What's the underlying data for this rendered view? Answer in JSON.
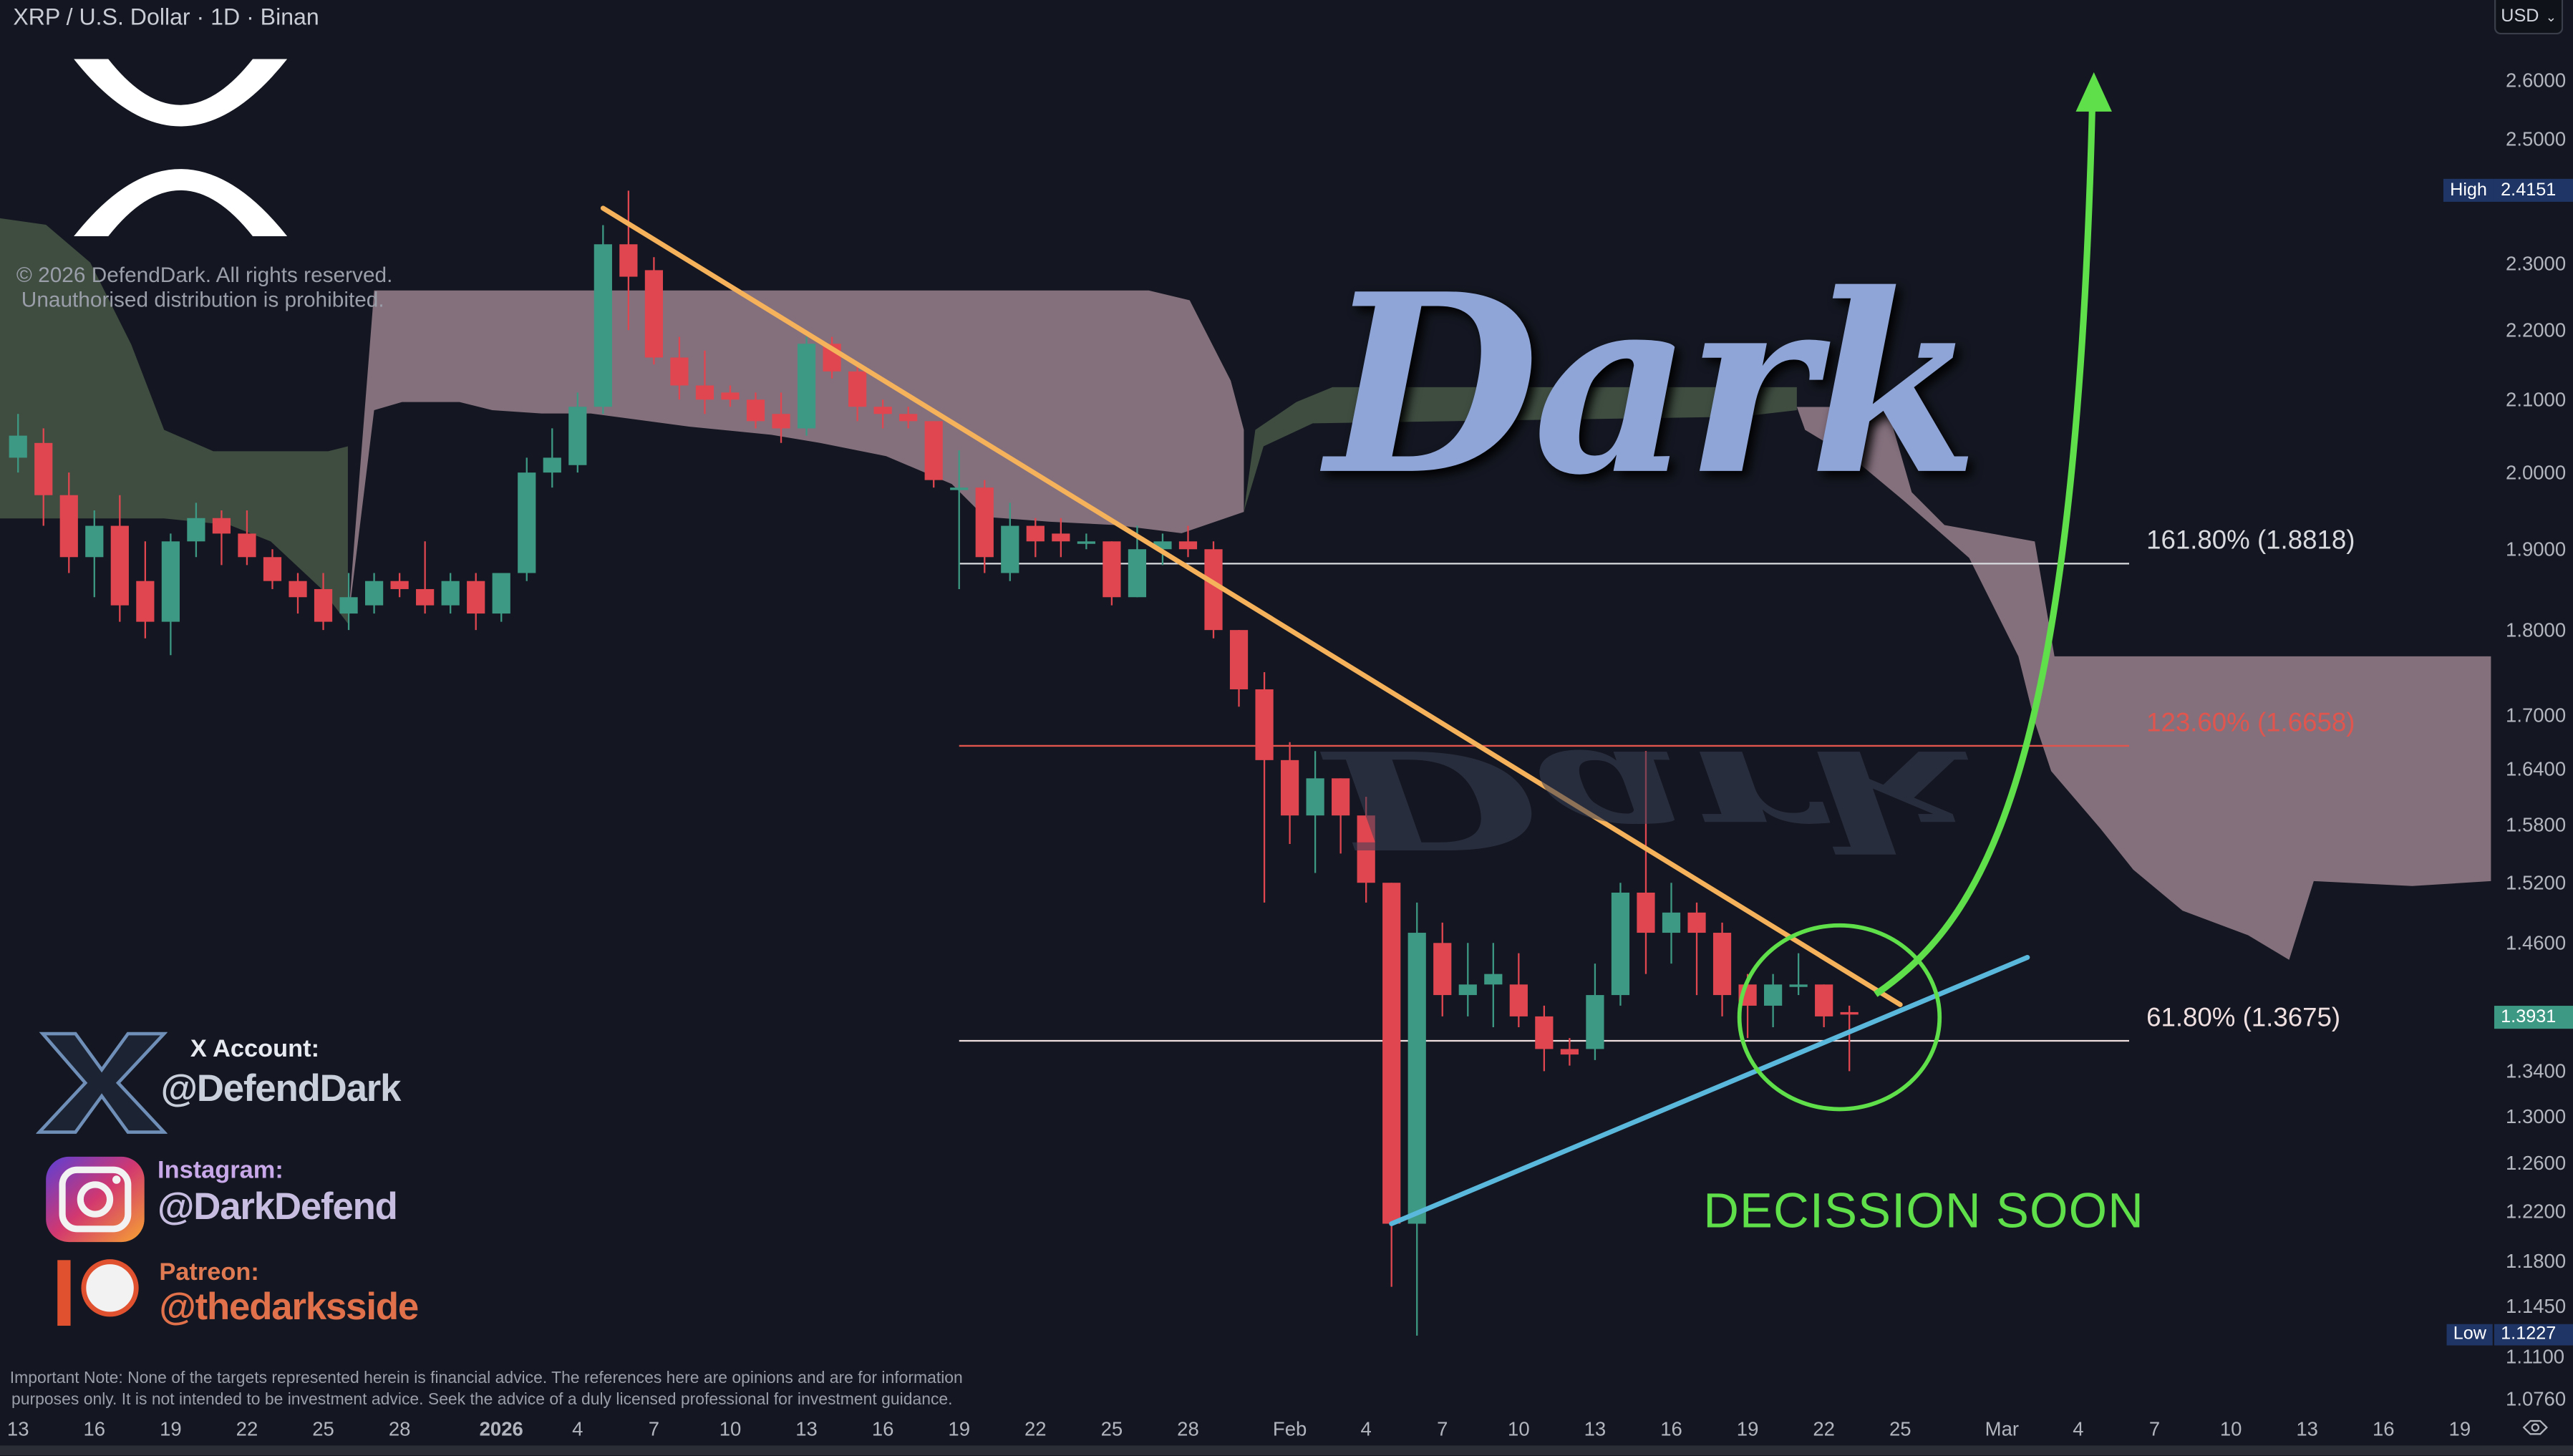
{
  "header": {
    "title": "XRP / U.S. Dollar · 1D · Binan"
  },
  "copyright": {
    "line1": "© 2026 DefendDark. All rights reserved.",
    "line2": "Unauthorised distribution is prohibited."
  },
  "watermark": {
    "text": "Dark"
  },
  "currency_button": {
    "label": "USD"
  },
  "badges": {
    "high": {
      "label": "High",
      "value": "2.4151"
    },
    "low": {
      "label": "Low",
      "value": "1.1227"
    },
    "last": {
      "value": "1.3931"
    }
  },
  "annotation": {
    "text": "DECISSION SOON"
  },
  "social": {
    "x": {
      "title": "X Account:",
      "handle": "@DefendDark"
    },
    "instagram": {
      "title": "Instagram:",
      "handle": "@DarkDefend"
    },
    "patreon": {
      "title": "Patreon:",
      "handle": "@thedarksside"
    }
  },
  "disclaimer": {
    "line1": "Important Note: None of the targets represented herein is financial advice. The references here are opinions and are for information",
    "line2": "purposes only. It is not intended to be investment advice. Seek the advice of a duly licensed professional for investment guidance."
  },
  "colors": {
    "up": "#3d9983",
    "down": "#e0464f",
    "background": "#141721",
    "downtrend": "#f5b25a",
    "uptrend": "#5ab8dc",
    "arrow": "#5fe04a",
    "cloud_bear": "#84707d",
    "cloud_bull": "#3f4d41"
  },
  "chart_data": {
    "type": "candlestick",
    "title": "XRP / U.S. Dollar · 1D · Binan",
    "y_scale": "log",
    "ylim": [
      1.076,
      2.66
    ],
    "xlim": [
      "2025-12-13",
      "2026-03-21"
    ],
    "grid": false,
    "y_ticks": [
      "2.6000",
      "2.5000",
      "2.3000",
      "2.2000",
      "2.1000",
      "2.0000",
      "1.9000",
      "1.8000",
      "1.7000",
      "1.6400",
      "1.5800",
      "1.5200",
      "1.4600",
      "1.3400",
      "1.3000",
      "1.2600",
      "1.2200",
      "1.1800",
      "1.1450",
      "1.1100",
      "1.0760"
    ],
    "x_ticks": [
      {
        "label": "13",
        "date": "2025-12-13"
      },
      {
        "label": "16",
        "date": "2025-12-16"
      },
      {
        "label": "19",
        "date": "2025-12-19"
      },
      {
        "label": "22",
        "date": "2025-12-22"
      },
      {
        "label": "25",
        "date": "2025-12-25"
      },
      {
        "label": "28",
        "date": "2025-12-28"
      },
      {
        "label": "2026",
        "date": "2026-01-01",
        "bold": true
      },
      {
        "label": "4",
        "date": "2026-01-04"
      },
      {
        "label": "7",
        "date": "2026-01-07"
      },
      {
        "label": "10",
        "date": "2026-01-10"
      },
      {
        "label": "13",
        "date": "2026-01-13"
      },
      {
        "label": "16",
        "date": "2026-01-16"
      },
      {
        "label": "19",
        "date": "2026-01-19"
      },
      {
        "label": "22",
        "date": "2026-01-22"
      },
      {
        "label": "25",
        "date": "2026-01-25"
      },
      {
        "label": "28",
        "date": "2026-01-28"
      },
      {
        "label": "Feb",
        "date": "2026-02-01"
      },
      {
        "label": "4",
        "date": "2026-02-04"
      },
      {
        "label": "7",
        "date": "2026-02-07"
      },
      {
        "label": "10",
        "date": "2026-02-10"
      },
      {
        "label": "13",
        "date": "2026-02-13"
      },
      {
        "label": "16",
        "date": "2026-02-16"
      },
      {
        "label": "19",
        "date": "2026-02-19"
      },
      {
        "label": "22",
        "date": "2026-02-22"
      },
      {
        "label": "25",
        "date": "2026-02-25"
      },
      {
        "label": "Mar",
        "date": "2026-03-01"
      },
      {
        "label": "4",
        "date": "2026-03-04"
      },
      {
        "label": "7",
        "date": "2026-03-07"
      },
      {
        "label": "10",
        "date": "2026-03-10"
      },
      {
        "label": "13",
        "date": "2026-03-13"
      },
      {
        "label": "16",
        "date": "2026-03-16"
      },
      {
        "label": "19",
        "date": "2026-03-19"
      }
    ],
    "candles_columns": [
      "date",
      "open",
      "high",
      "low",
      "close"
    ],
    "candles": [
      [
        "2025-12-13",
        2.02,
        2.08,
        2.0,
        2.05
      ],
      [
        "2025-12-14",
        2.04,
        2.06,
        1.93,
        1.97
      ],
      [
        "2025-12-15",
        1.97,
        2.0,
        1.87,
        1.89
      ],
      [
        "2025-12-16",
        1.89,
        1.95,
        1.84,
        1.93
      ],
      [
        "2025-12-17",
        1.93,
        1.97,
        1.81,
        1.83
      ],
      [
        "2025-12-18",
        1.86,
        1.91,
        1.79,
        1.81
      ],
      [
        "2025-12-19",
        1.81,
        1.92,
        1.77,
        1.91
      ],
      [
        "2025-12-20",
        1.91,
        1.96,
        1.89,
        1.94
      ],
      [
        "2025-12-21",
        1.94,
        1.95,
        1.88,
        1.92
      ],
      [
        "2025-12-22",
        1.92,
        1.95,
        1.88,
        1.89
      ],
      [
        "2025-12-23",
        1.89,
        1.9,
        1.85,
        1.86
      ],
      [
        "2025-12-24",
        1.86,
        1.87,
        1.82,
        1.84
      ],
      [
        "2025-12-25",
        1.85,
        1.87,
        1.8,
        1.81
      ],
      [
        "2025-12-26",
        1.82,
        1.87,
        1.8,
        1.84
      ],
      [
        "2025-12-27",
        1.83,
        1.87,
        1.82,
        1.86
      ],
      [
        "2025-12-28",
        1.86,
        1.87,
        1.84,
        1.85
      ],
      [
        "2025-12-29",
        1.85,
        1.91,
        1.82,
        1.83
      ],
      [
        "2025-12-30",
        1.83,
        1.87,
        1.82,
        1.86
      ],
      [
        "2025-12-31",
        1.86,
        1.87,
        1.8,
        1.82
      ],
      [
        "2026-01-01",
        1.82,
        1.87,
        1.81,
        1.87
      ],
      [
        "2026-01-02",
        1.87,
        2.02,
        1.86,
        2.0
      ],
      [
        "2026-01-03",
        2.0,
        2.06,
        1.98,
        2.02
      ],
      [
        "2026-01-04",
        2.01,
        2.11,
        2.0,
        2.09
      ],
      [
        "2026-01-05",
        2.09,
        2.36,
        2.08,
        2.33
      ],
      [
        "2026-01-06",
        2.33,
        2.4151,
        2.2,
        2.28
      ],
      [
        "2026-01-07",
        2.29,
        2.31,
        2.15,
        2.16
      ],
      [
        "2026-01-08",
        2.16,
        2.19,
        2.1,
        2.12
      ],
      [
        "2026-01-09",
        2.12,
        2.17,
        2.08,
        2.1
      ],
      [
        "2026-01-10",
        2.11,
        2.12,
        2.09,
        2.1
      ],
      [
        "2026-01-11",
        2.1,
        2.11,
        2.06,
        2.07
      ],
      [
        "2026-01-12",
        2.08,
        2.11,
        2.04,
        2.06
      ],
      [
        "2026-01-13",
        2.06,
        2.19,
        2.05,
        2.18
      ],
      [
        "2026-01-14",
        2.18,
        2.19,
        2.13,
        2.14
      ],
      [
        "2026-01-15",
        2.14,
        2.15,
        2.07,
        2.09
      ],
      [
        "2026-01-16",
        2.09,
        2.1,
        2.06,
        2.08
      ],
      [
        "2026-01-17",
        2.08,
        2.09,
        2.06,
        2.07
      ],
      [
        "2026-01-18",
        2.07,
        2.07,
        1.98,
        1.99
      ],
      [
        "2026-01-19",
        1.98,
        2.03,
        1.85,
        1.98
      ],
      [
        "2026-01-20",
        1.98,
        1.99,
        1.87,
        1.89
      ],
      [
        "2026-01-21",
        1.87,
        1.96,
        1.86,
        1.93
      ],
      [
        "2026-01-22",
        1.93,
        1.94,
        1.89,
        1.91
      ],
      [
        "2026-01-23",
        1.92,
        1.94,
        1.89,
        1.91
      ],
      [
        "2026-01-24",
        1.91,
        1.92,
        1.9,
        1.91
      ],
      [
        "2026-01-25",
        1.91,
        1.91,
        1.83,
        1.84
      ],
      [
        "2026-01-26",
        1.84,
        1.93,
        1.84,
        1.9
      ],
      [
        "2026-01-27",
        1.9,
        1.92,
        1.88,
        1.91
      ],
      [
        "2026-01-28",
        1.91,
        1.93,
        1.89,
        1.9
      ],
      [
        "2026-01-29",
        1.9,
        1.91,
        1.79,
        1.8
      ],
      [
        "2026-01-30",
        1.8,
        1.8,
        1.71,
        1.73
      ],
      [
        "2026-01-31",
        1.73,
        1.75,
        1.5,
        1.65
      ],
      [
        "2026-02-01",
        1.65,
        1.67,
        1.56,
        1.59
      ],
      [
        "2026-02-02",
        1.59,
        1.66,
        1.53,
        1.63
      ],
      [
        "2026-02-03",
        1.63,
        1.63,
        1.55,
        1.59
      ],
      [
        "2026-02-04",
        1.59,
        1.61,
        1.5,
        1.52
      ],
      [
        "2026-02-05",
        1.52,
        1.52,
        1.16,
        1.21
      ],
      [
        "2026-02-06",
        1.21,
        1.5,
        1.1227,
        1.47
      ],
      [
        "2026-02-07",
        1.46,
        1.48,
        1.39,
        1.41
      ],
      [
        "2026-02-08",
        1.41,
        1.46,
        1.39,
        1.42
      ],
      [
        "2026-02-09",
        1.42,
        1.46,
        1.38,
        1.43
      ],
      [
        "2026-02-10",
        1.42,
        1.45,
        1.38,
        1.39
      ],
      [
        "2026-02-11",
        1.39,
        1.4,
        1.34,
        1.36
      ],
      [
        "2026-02-12",
        1.36,
        1.37,
        1.345,
        1.355
      ],
      [
        "2026-02-13",
        1.36,
        1.44,
        1.35,
        1.41
      ],
      [
        "2026-02-14",
        1.41,
        1.52,
        1.4,
        1.51
      ],
      [
        "2026-02-15",
        1.51,
        1.66,
        1.43,
        1.47
      ],
      [
        "2026-02-16",
        1.47,
        1.52,
        1.44,
        1.49
      ],
      [
        "2026-02-17",
        1.49,
        1.5,
        1.41,
        1.47
      ],
      [
        "2026-02-18",
        1.47,
        1.48,
        1.39,
        1.41
      ],
      [
        "2026-02-19",
        1.42,
        1.43,
        1.37,
        1.4
      ],
      [
        "2026-02-20",
        1.4,
        1.43,
        1.38,
        1.42
      ],
      [
        "2026-02-21",
        1.42,
        1.45,
        1.41,
        1.42
      ],
      [
        "2026-02-22",
        1.42,
        1.42,
        1.38,
        1.39
      ],
      [
        "2026-02-23",
        1.394,
        1.4,
        1.34,
        1.3931
      ]
    ],
    "fib_levels": [
      {
        "label": "161.80% (1.8818)",
        "price": 1.8818,
        "color": "#d9dbe0"
      },
      {
        "label": "123.60% (1.6658)",
        "price": 1.6658,
        "color": "#e0564f"
      },
      {
        "label": "61.80% (1.3675)",
        "price": 1.3675,
        "color": "#f0dfe0"
      }
    ],
    "fib_range": [
      "2026-01-19",
      "2026-03-06"
    ],
    "trendlines": [
      {
        "name": "downtrend",
        "from": [
          "2026-01-05",
          2.387
        ],
        "to": [
          "2026-02-25",
          1.401
        ]
      },
      {
        "name": "uptrend",
        "from": [
          "2026-02-05",
          1.21
        ],
        "to": [
          "2026-03-02",
          1.446
        ]
      }
    ]
  }
}
